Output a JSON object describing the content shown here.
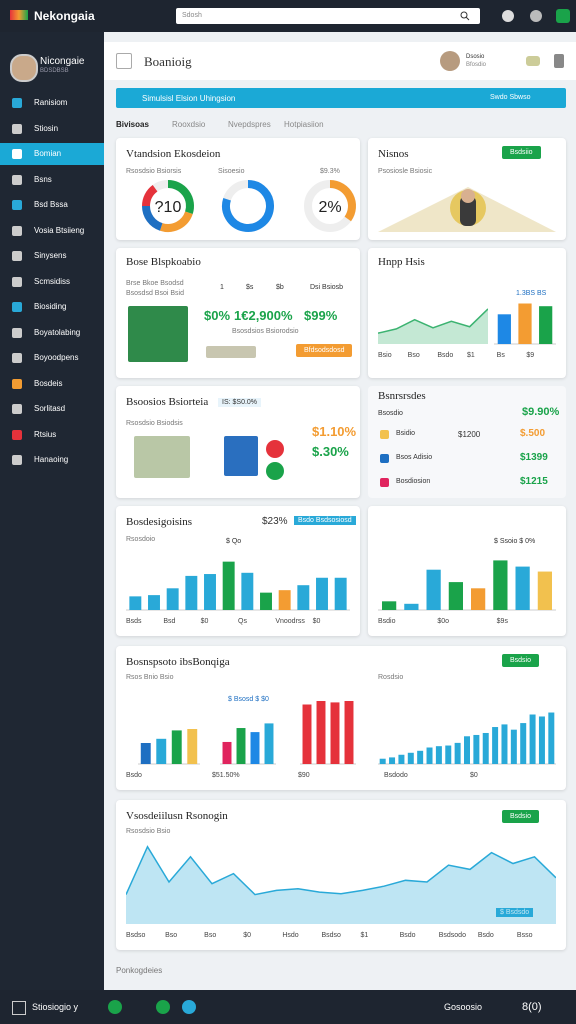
{
  "topbar": {
    "brand": "Nekongaia",
    "search": "Sdosh"
  },
  "sidebar": {
    "name": "Nicongaie",
    "role": "BDSDBSB",
    "active": 2,
    "items": [
      "Ranisiom",
      "Stiosin",
      "Bomian",
      "Bsns",
      "Bsd Bssa",
      "Vosia Btsiieng",
      "Sinysens",
      "Scmsidiss",
      "Biosiding",
      "Boyatolabing",
      "Boyoodpens",
      "Bosdeis",
      "Sorlitasd",
      "Rtsius",
      "Hanaoing"
    ]
  },
  "header": {
    "title": "Boanioig",
    "user": "Dsosio",
    "user_sub": "Bfosdio"
  },
  "banner": {
    "text": "Simulsisl Elsion Uhingsion",
    "action": "Swdo Sbwso"
  },
  "tabs": {
    "items": [
      "Bivisoas",
      "Rooxdsio",
      "Nvepdspres",
      "Hotpiasiion"
    ],
    "active": 0
  },
  "cards": {
    "donuts": {
      "title": "Vtandsion Ekosdeion",
      "labels": [
        "Rsosdsio Bsiorsis",
        "Sisoesio",
        "$9.3%"
      ],
      "charts": [
        {
          "type": "donut",
          "total": 100,
          "segments": [
            30,
            25,
            20,
            15
          ],
          "colors": [
            "#1aa34a",
            "#f39c32",
            "#1e6fc2",
            "#e5323b"
          ],
          "caption": "?10"
        },
        {
          "type": "donut",
          "total": 100,
          "segments": [
            80
          ],
          "colors": [
            "#1e88e5"
          ]
        },
        {
          "type": "donut",
          "total": 100,
          "segments": [
            35
          ],
          "colors": [
            "#f39c32"
          ],
          "caption": "2%"
        }
      ]
    },
    "news": {
      "title": "Nisnos",
      "sub": "Psosiosle Bsiosic",
      "button": "Bsdsiio"
    },
    "money": {
      "title": "Bose Blspkoabio",
      "sub1": "Brse Bkoe Bsodsd",
      "sub2": "Bsosdsd Bsoi Bsid",
      "legend": [
        "1",
        "$s",
        "$b",
        "Dsi Bsiosb"
      ],
      "stats": [
        "$0%",
        "1€2,900%",
        "$99%"
      ],
      "note": "Bsosdsios Bsiorodsio",
      "button": "Bfdsodsdosd"
    },
    "trend": {
      "title": "Hnpp Hsis",
      "label": "1.3BS BS",
      "xlabels": [
        "Bsio",
        "Bso",
        "Bsdo",
        "$1",
        "Bs",
        "$9"
      ],
      "line": {
        "type": "area",
        "ylim": [
          0,
          100
        ],
        "color": "#3cb371",
        "values": [
          20,
          28,
          45,
          30,
          42,
          32,
          65
        ]
      },
      "bars": {
        "type": "bar",
        "ylim": [
          0,
          100
        ],
        "values": [
          55,
          75,
          70
        ],
        "colors": [
          "#1e88e5",
          "#f39c32",
          "#1aa34a"
        ]
      }
    },
    "saving": {
      "title": "Bsoosios Bsiorteia",
      "chip": "IS: $S0.0%",
      "sub": "Rsosdsio Bsiodsis",
      "stats": [
        "$1.10%",
        "$.30%"
      ]
    },
    "list": {
      "title": "Bsnrsrsdes",
      "head": "Bsosdio",
      "head_value": "$9.90%",
      "rows": [
        {
          "label": "Bsidio",
          "value": "$1200",
          "amount": "$.500"
        },
        {
          "label": "Bsos Adisio",
          "value": "",
          "amount": "$1399"
        },
        {
          "label": "Bosdiosion",
          "value": "",
          "amount": "$1215"
        }
      ]
    },
    "bars1": {
      "title": "Bosdesigoisins",
      "stat": "$23%",
      "button": "Bsdo Bsdsosiosd",
      "sub": "Rsosdoio",
      "note": "$ Qo",
      "xlabels": [
        "Bsds",
        "Bsd",
        "$0",
        "Qs",
        "Vnoodrss",
        "$0"
      ],
      "chart": {
        "type": "bar",
        "ylim": [
          0,
          100
        ],
        "values": [
          22,
          24,
          35,
          55,
          58,
          78,
          60,
          28,
          32,
          40,
          52,
          52
        ],
        "colors": [
          "#29a9d8",
          "#29a9d8",
          "#29a9d8",
          "#29a9d8",
          "#29a9d8",
          "#1aa34a",
          "#29a9d8",
          "#1aa34a",
          "#f39c32",
          "#29a9d8",
          "#29a9d8",
          "#29a9d8"
        ]
      }
    },
    "bars2": {
      "label": "$ Ssoio $ 0%",
      "xlabels": [
        "Bsdio",
        "$0o",
        "$9s"
      ],
      "button": "Bsdodio",
      "chart": {
        "type": "bar",
        "ylim": [
          0,
          100
        ],
        "values": [
          14,
          10,
          65,
          45,
          35,
          80,
          70,
          62
        ],
        "colors": [
          "#1aa34a",
          "#29a9d8",
          "#29a9d8",
          "#1aa34a",
          "#f39c32",
          "#1aa34a",
          "#29a9d8",
          "#f2c14e"
        ]
      }
    },
    "multi": {
      "title": "Bosnspsoto ibsBonqiga",
      "button": "Bsdsio",
      "sub1": "Rsos Bnio Bsio",
      "sub2": "Rosdsio",
      "chip": "$ Bsosd $ $0",
      "xlabels": [
        "Bsdo",
        "$51.50%",
        "$90",
        "Bsdodo",
        "$0"
      ],
      "charts": [
        {
          "type": "bar",
          "ylim": [
            0,
            100
          ],
          "values": [
            30,
            36,
            48,
            50
          ],
          "colors": [
            "#1e6fc2",
            "#29a9d8",
            "#1aa34a",
            "#f2c14e"
          ]
        },
        {
          "type": "bar",
          "ylim": [
            0,
            100
          ],
          "values": [
            38,
            62,
            55,
            70
          ],
          "colors": [
            "#e0245e",
            "#1aa34a",
            "#1e88e5",
            "#29a9d8"
          ]
        },
        {
          "type": "bar",
          "ylim": [
            0,
            100
          ],
          "values": [
            85,
            90,
            88,
            90
          ],
          "colors": [
            "#e5323b",
            "#e5323b",
            "#e5323b",
            "#e5323b"
          ]
        },
        {
          "type": "bar",
          "ylim": [
            0,
            100
          ],
          "values": [
            8,
            10,
            14,
            17,
            20,
            25,
            27,
            28,
            32,
            42,
            44,
            47,
            56,
            60,
            52,
            62,
            75,
            72,
            78
          ],
          "colors": [
            "#29a9d8",
            "#29a9d8",
            "#29a9d8",
            "#29a9d8",
            "#29a9d8",
            "#29a9d8",
            "#29a9d8",
            "#29a9d8",
            "#29a9d8",
            "#29a9d8",
            "#29a9d8",
            "#29a9d8",
            "#29a9d8",
            "#29a9d8",
            "#29a9d8",
            "#29a9d8",
            "#29a9d8",
            "#29a9d8",
            "#29a9d8"
          ]
        }
      ]
    },
    "area": {
      "title": "Vsosdeiilusn Rsonogin",
      "sub": "Rsosdsio Bsio",
      "button": "Bsdsio",
      "chip": "$ Bsdsdo",
      "xlabels": [
        "Bsdso",
        "Bso",
        "Bso",
        "$0",
        "Hsdo",
        "Bsdso",
        "$1",
        "Bsdo",
        "Bsdsodo",
        "Bsdo",
        "Bsso"
      ],
      "chart": {
        "type": "area",
        "ylim": [
          0,
          100
        ],
        "color": "#29a9d8",
        "values": [
          35,
          92,
          50,
          80,
          48,
          60,
          35,
          40,
          42,
          38,
          36,
          40,
          45,
          52,
          50,
          70,
          65,
          85,
          72,
          80,
          55
        ]
      }
    }
  },
  "footer": {
    "text": "Ponkogdeies"
  },
  "bottombar": {
    "label": "Stiosiogio y",
    "right": "Gosoosio",
    "code": "8(0)"
  }
}
